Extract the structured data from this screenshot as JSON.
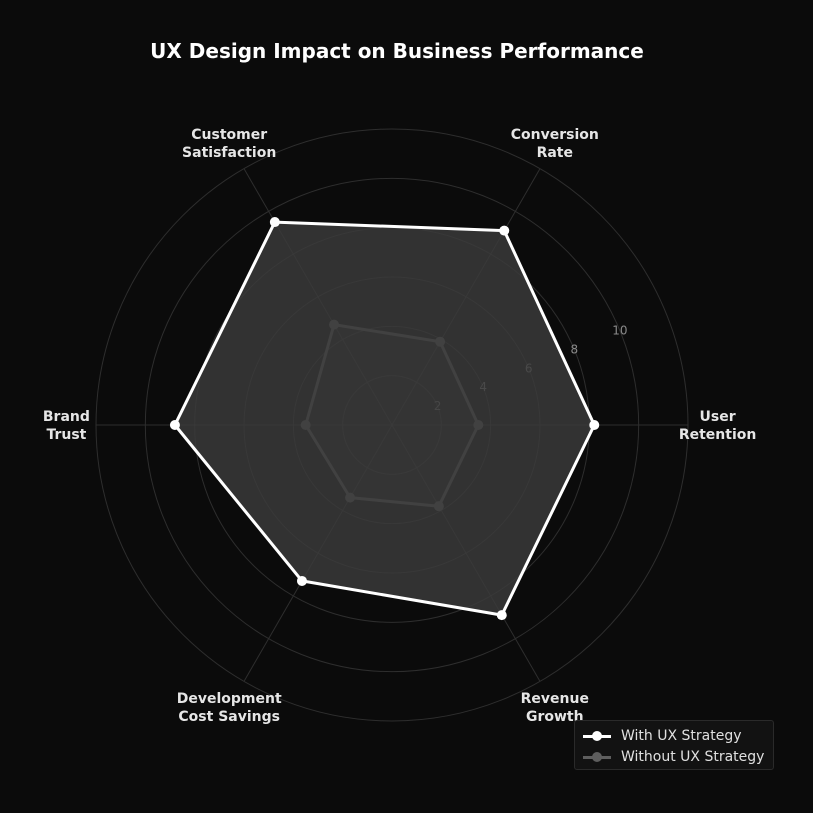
{
  "chart_data": {
    "type": "radar",
    "title": "UX Design Impact on Business Performance",
    "categories": [
      "User\nRetention",
      "Conversion\nRate",
      "Customer\nSatisfaction",
      "Brand\nTrust",
      "Development\nCost Savings",
      "Revenue\nGrowth"
    ],
    "r_ticks": [
      2,
      4,
      6,
      8,
      10
    ],
    "r_range": [
      0,
      12
    ],
    "grid": true,
    "legend_position": "bottom-right",
    "series": [
      {
        "name": "With UX Strategy",
        "values": [
          8.2,
          9.1,
          9.5,
          8.8,
          7.3,
          8.9
        ],
        "color": "#ffffff",
        "fill": "#3a3a3a"
      },
      {
        "name": "Without UX Strategy",
        "values": [
          3.5,
          3.9,
          4.7,
          3.5,
          3.4,
          3.8
        ],
        "color": "#5e5e5e",
        "fill": "#444444"
      }
    ],
    "colors": {
      "background": "#0b0b0b",
      "grid": "#2e2e2e"
    }
  }
}
